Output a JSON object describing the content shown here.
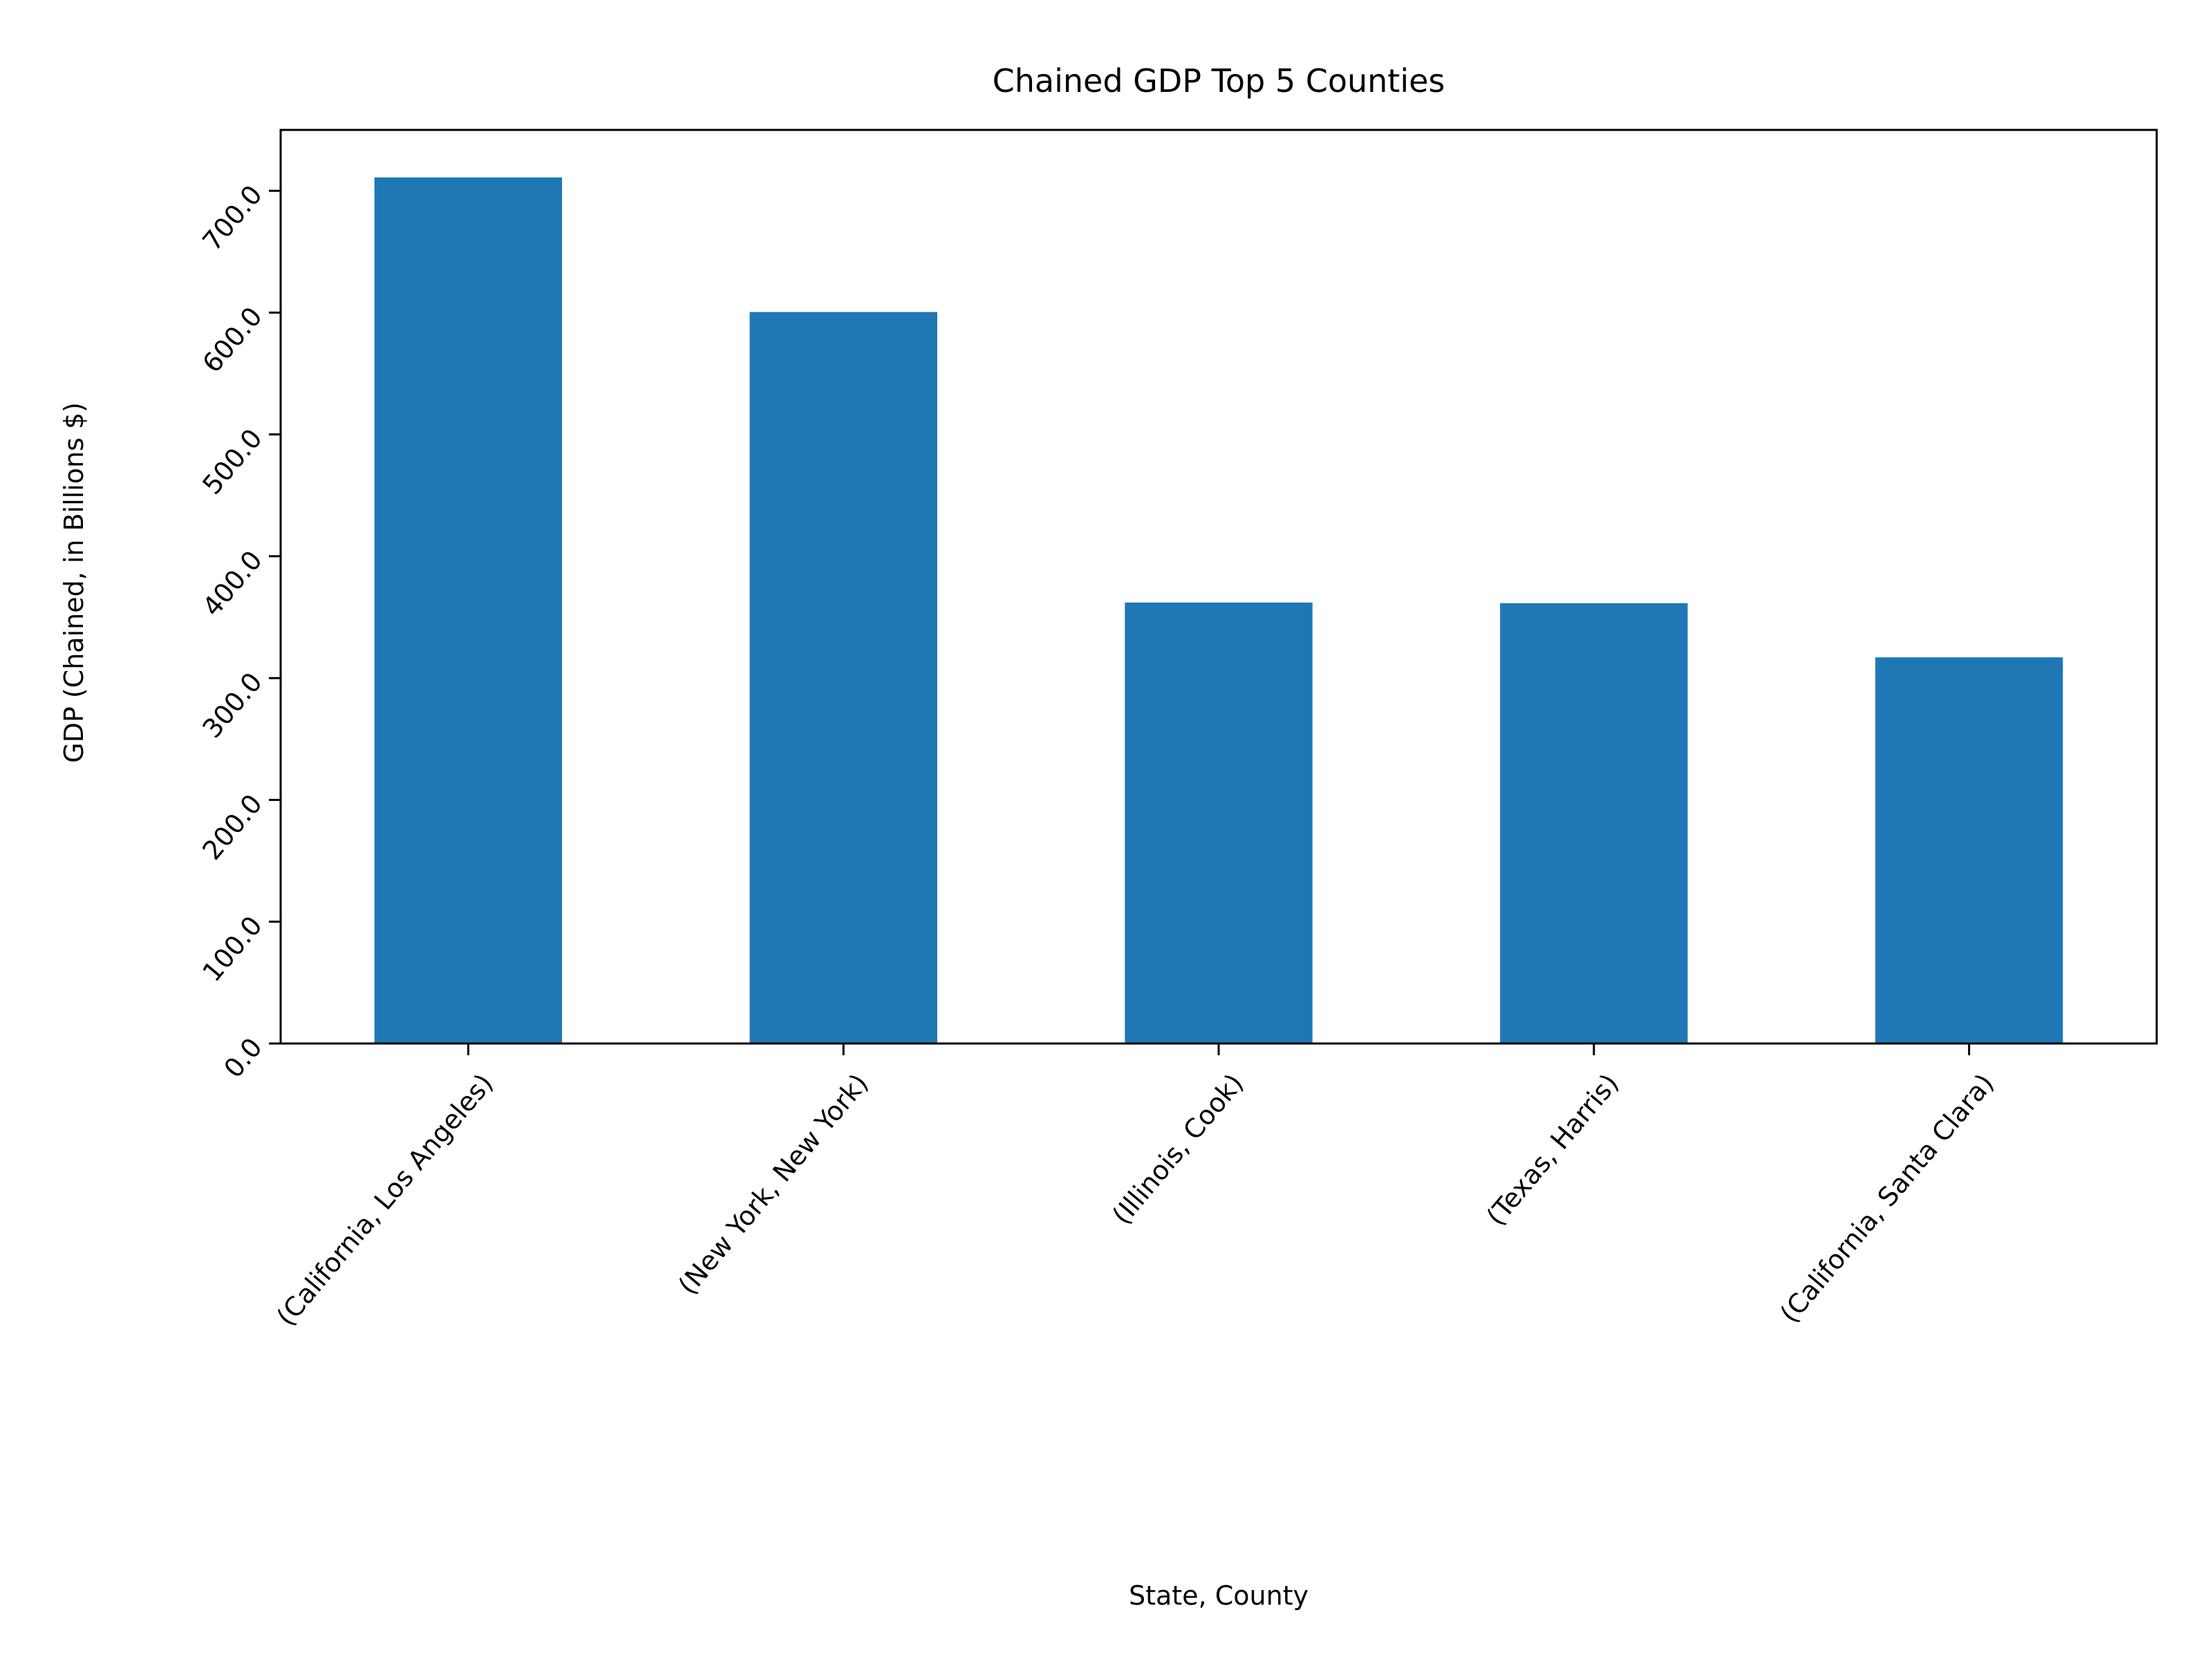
{
  "chart_data": {
    "type": "bar",
    "title": "Chained GDP Top 5 Counties",
    "xlabel": "State, County",
    "ylabel": "GDP (Chained, in Billions $)",
    "categories": [
      "(California, Los Angeles)",
      "(New York, New York)",
      "(Illinois, Cook)",
      "(Texas, Harris)",
      "(California, Santa Clara)"
    ],
    "values": [
      711.0,
      600.5,
      362.0,
      361.5,
      317.0
    ],
    "ylim": [
      0,
      750
    ],
    "yticks": [
      0,
      100,
      200,
      300,
      400,
      500,
      600,
      700
    ],
    "ytick_labels": [
      "0.0",
      "100.0",
      "200.0",
      "300.0",
      "400.0",
      "500.0",
      "600.0",
      "700.0"
    ],
    "grid": false,
    "legend": "none",
    "bar_color": "#1f77b4"
  }
}
